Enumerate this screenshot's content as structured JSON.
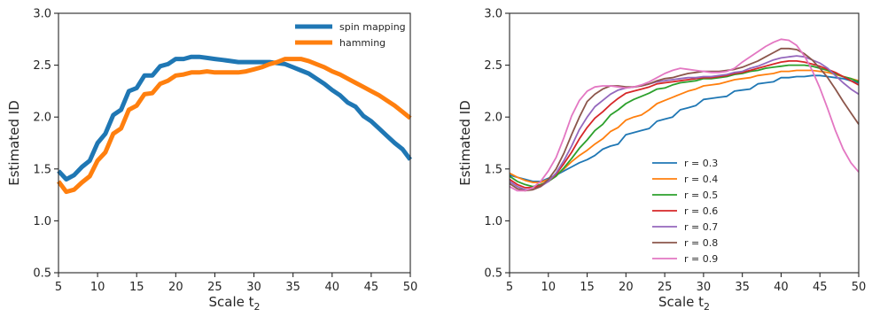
{
  "chart_data": [
    {
      "type": "line",
      "xlabel": "Scale t",
      "xlabel_sub": "2",
      "ylabel": "Estimated ID",
      "xlim": [
        5,
        50
      ],
      "ylim": [
        0.5,
        3.0
      ],
      "xticks": [
        5,
        10,
        15,
        20,
        25,
        30,
        35,
        40,
        45,
        50
      ],
      "yticks": [
        "0.5",
        "1.0",
        "1.5",
        "2.0",
        "2.5",
        "3.0"
      ],
      "legend_position": "top-right",
      "grid": false,
      "series": [
        {
          "name": "spin mapping",
          "color": "#1f77b4",
          "x": [
            5,
            6,
            7,
            8,
            9,
            10,
            11,
            12,
            13,
            14,
            15,
            16,
            17,
            18,
            19,
            20,
            21,
            22,
            23,
            24,
            25,
            26,
            27,
            28,
            29,
            30,
            31,
            32,
            33,
            34,
            35,
            36,
            37,
            38,
            39,
            40,
            41,
            42,
            43,
            44,
            45,
            46,
            47,
            48,
            49,
            50
          ],
          "y": [
            1.48,
            1.4,
            1.44,
            1.52,
            1.58,
            1.75,
            1.84,
            2.02,
            2.07,
            2.25,
            2.28,
            2.4,
            2.4,
            2.49,
            2.51,
            2.56,
            2.56,
            2.58,
            2.58,
            2.57,
            2.56,
            2.55,
            2.54,
            2.53,
            2.53,
            2.53,
            2.53,
            2.53,
            2.52,
            2.51,
            2.48,
            2.45,
            2.42,
            2.37,
            2.32,
            2.26,
            2.21,
            2.14,
            2.1,
            2.01,
            1.96,
            1.89,
            1.82,
            1.75,
            1.69,
            1.59
          ]
        },
        {
          "name": "hamming",
          "color": "#ff7f0e",
          "x": [
            5,
            6,
            7,
            8,
            9,
            10,
            11,
            12,
            13,
            14,
            15,
            16,
            17,
            18,
            19,
            20,
            21,
            22,
            23,
            24,
            25,
            26,
            27,
            28,
            29,
            30,
            31,
            32,
            33,
            34,
            35,
            36,
            37,
            38,
            39,
            40,
            41,
            42,
            43,
            44,
            45,
            46,
            47,
            48,
            49,
            50
          ],
          "y": [
            1.38,
            1.28,
            1.3,
            1.37,
            1.43,
            1.58,
            1.66,
            1.84,
            1.89,
            2.07,
            2.11,
            2.22,
            2.23,
            2.32,
            2.35,
            2.4,
            2.41,
            2.43,
            2.43,
            2.44,
            2.43,
            2.43,
            2.43,
            2.43,
            2.44,
            2.46,
            2.48,
            2.51,
            2.53,
            2.56,
            2.56,
            2.56,
            2.54,
            2.51,
            2.48,
            2.44,
            2.41,
            2.37,
            2.33,
            2.29,
            2.25,
            2.21,
            2.16,
            2.11,
            2.05,
            1.99
          ]
        }
      ]
    },
    {
      "type": "line",
      "xlabel": "Scale t",
      "xlabel_sub": "2",
      "ylabel": "Estimated ID",
      "xlim": [
        5,
        50
      ],
      "ylim": [
        0.5,
        3.0
      ],
      "xticks": [
        5,
        10,
        15,
        20,
        25,
        30,
        35,
        40,
        45,
        50
      ],
      "yticks": [
        "0.5",
        "1.0",
        "1.5",
        "2.0",
        "2.5",
        "3.0"
      ],
      "legend_position": "lower-center",
      "grid": false,
      "series": [
        {
          "name": "r = 0.3",
          "color": "#1f77b4",
          "x": [
            5,
            6,
            7,
            8,
            9,
            10,
            11,
            12,
            13,
            14,
            15,
            16,
            17,
            18,
            19,
            20,
            21,
            22,
            23,
            24,
            25,
            26,
            27,
            28,
            29,
            30,
            31,
            32,
            33,
            34,
            35,
            36,
            37,
            38,
            39,
            40,
            41,
            42,
            43,
            44,
            45,
            46,
            47,
            48,
            49,
            50
          ],
          "y": [
            1.44,
            1.42,
            1.4,
            1.38,
            1.38,
            1.41,
            1.44,
            1.48,
            1.52,
            1.56,
            1.59,
            1.63,
            1.69,
            1.72,
            1.74,
            1.83,
            1.85,
            1.87,
            1.89,
            1.96,
            1.98,
            2.0,
            2.07,
            2.09,
            2.11,
            2.17,
            2.18,
            2.19,
            2.2,
            2.25,
            2.26,
            2.27,
            2.32,
            2.33,
            2.34,
            2.38,
            2.38,
            2.39,
            2.39,
            2.4,
            2.4,
            2.39,
            2.38,
            2.37,
            2.35,
            2.33
          ]
        },
        {
          "name": "r = 0.4",
          "color": "#ff7f0e",
          "x": [
            5,
            6,
            7,
            8,
            9,
            10,
            11,
            12,
            13,
            14,
            15,
            16,
            17,
            18,
            19,
            20,
            21,
            22,
            23,
            24,
            25,
            26,
            27,
            28,
            29,
            30,
            31,
            32,
            33,
            34,
            35,
            36,
            37,
            38,
            39,
            40,
            41,
            42,
            43,
            44,
            45,
            46,
            47,
            48,
            49,
            50
          ],
          "y": [
            1.46,
            1.42,
            1.39,
            1.37,
            1.37,
            1.4,
            1.44,
            1.5,
            1.57,
            1.63,
            1.68,
            1.74,
            1.79,
            1.86,
            1.9,
            1.97,
            2.0,
            2.02,
            2.07,
            2.13,
            2.16,
            2.19,
            2.22,
            2.25,
            2.27,
            2.3,
            2.31,
            2.32,
            2.34,
            2.36,
            2.37,
            2.38,
            2.4,
            2.41,
            2.42,
            2.44,
            2.44,
            2.45,
            2.45,
            2.45,
            2.44,
            2.43,
            2.41,
            2.39,
            2.37,
            2.35
          ]
        },
        {
          "name": "r = 0.5",
          "color": "#2ca02c",
          "x": [
            5,
            6,
            7,
            8,
            9,
            10,
            11,
            12,
            13,
            14,
            15,
            16,
            17,
            18,
            19,
            20,
            21,
            22,
            23,
            24,
            25,
            26,
            27,
            28,
            29,
            30,
            31,
            32,
            33,
            34,
            35,
            36,
            37,
            38,
            39,
            40,
            41,
            42,
            43,
            44,
            45,
            46,
            47,
            48,
            49,
            50
          ],
          "y": [
            1.43,
            1.38,
            1.35,
            1.33,
            1.35,
            1.38,
            1.43,
            1.51,
            1.6,
            1.7,
            1.78,
            1.87,
            1.93,
            2.02,
            2.07,
            2.13,
            2.17,
            2.2,
            2.23,
            2.27,
            2.28,
            2.31,
            2.33,
            2.34,
            2.35,
            2.37,
            2.37,
            2.38,
            2.39,
            2.41,
            2.42,
            2.44,
            2.45,
            2.47,
            2.48,
            2.49,
            2.5,
            2.5,
            2.5,
            2.49,
            2.47,
            2.45,
            2.42,
            2.39,
            2.37,
            2.34
          ]
        },
        {
          "name": "r = 0.6",
          "color": "#d62728",
          "x": [
            5,
            6,
            7,
            8,
            9,
            10,
            11,
            12,
            13,
            14,
            15,
            16,
            17,
            18,
            19,
            20,
            21,
            22,
            23,
            24,
            25,
            26,
            27,
            28,
            29,
            30,
            31,
            32,
            33,
            34,
            35,
            36,
            37,
            38,
            39,
            40,
            41,
            42,
            43,
            44,
            45,
            46,
            47,
            48,
            49,
            50
          ],
          "y": [
            1.4,
            1.35,
            1.32,
            1.32,
            1.34,
            1.38,
            1.45,
            1.55,
            1.66,
            1.79,
            1.9,
            1.99,
            2.05,
            2.12,
            2.18,
            2.23,
            2.25,
            2.27,
            2.29,
            2.32,
            2.33,
            2.34,
            2.35,
            2.36,
            2.37,
            2.38,
            2.38,
            2.39,
            2.4,
            2.42,
            2.43,
            2.45,
            2.47,
            2.49,
            2.51,
            2.53,
            2.54,
            2.54,
            2.53,
            2.51,
            2.49,
            2.46,
            2.43,
            2.39,
            2.35,
            2.31
          ]
        },
        {
          "name": "r = 0.7",
          "color": "#9467bd",
          "x": [
            5,
            6,
            7,
            8,
            9,
            10,
            11,
            12,
            13,
            14,
            15,
            16,
            17,
            18,
            19,
            20,
            21,
            22,
            23,
            24,
            25,
            26,
            27,
            28,
            29,
            30,
            31,
            32,
            33,
            34,
            35,
            36,
            37,
            38,
            39,
            40,
            41,
            42,
            43,
            44,
            45,
            46,
            47,
            48,
            49,
            50
          ],
          "y": [
            1.38,
            1.33,
            1.3,
            1.3,
            1.33,
            1.38,
            1.46,
            1.58,
            1.72,
            1.88,
            2.0,
            2.1,
            2.16,
            2.22,
            2.26,
            2.28,
            2.29,
            2.3,
            2.32,
            2.34,
            2.35,
            2.36,
            2.37,
            2.38,
            2.38,
            2.39,
            2.39,
            2.4,
            2.41,
            2.43,
            2.44,
            2.47,
            2.49,
            2.52,
            2.55,
            2.57,
            2.58,
            2.59,
            2.58,
            2.55,
            2.52,
            2.47,
            2.4,
            2.33,
            2.27,
            2.22
          ]
        },
        {
          "name": "r = 0.8",
          "color": "#8c564b",
          "x": [
            5,
            6,
            7,
            8,
            9,
            10,
            11,
            12,
            13,
            14,
            15,
            16,
            17,
            18,
            19,
            20,
            21,
            22,
            23,
            24,
            25,
            26,
            27,
            28,
            29,
            30,
            31,
            32,
            33,
            34,
            35,
            36,
            37,
            38,
            39,
            40,
            41,
            42,
            43,
            44,
            45,
            46,
            47,
            48,
            49,
            50
          ],
          "y": [
            1.36,
            1.31,
            1.29,
            1.3,
            1.33,
            1.4,
            1.5,
            1.65,
            1.83,
            2.0,
            2.15,
            2.22,
            2.27,
            2.3,
            2.3,
            2.29,
            2.29,
            2.3,
            2.32,
            2.35,
            2.37,
            2.38,
            2.4,
            2.42,
            2.43,
            2.44,
            2.44,
            2.44,
            2.45,
            2.46,
            2.48,
            2.51,
            2.54,
            2.58,
            2.62,
            2.66,
            2.66,
            2.65,
            2.61,
            2.55,
            2.47,
            2.38,
            2.27,
            2.15,
            2.04,
            1.93
          ]
        },
        {
          "name": "r = 0.9",
          "color": "#e377c2",
          "x": [
            5,
            6,
            7,
            8,
            9,
            10,
            11,
            12,
            13,
            14,
            15,
            16,
            17,
            18,
            19,
            20,
            21,
            22,
            23,
            24,
            25,
            26,
            27,
            28,
            29,
            30,
            31,
            32,
            33,
            34,
            35,
            36,
            37,
            38,
            39,
            40,
            41,
            42,
            43,
            44,
            45,
            46,
            47,
            48,
            49,
            50
          ],
          "y": [
            1.33,
            1.29,
            1.29,
            1.32,
            1.38,
            1.48,
            1.61,
            1.8,
            2.01,
            2.16,
            2.25,
            2.29,
            2.3,
            2.3,
            2.29,
            2.28,
            2.29,
            2.31,
            2.34,
            2.38,
            2.42,
            2.45,
            2.47,
            2.46,
            2.45,
            2.44,
            2.43,
            2.43,
            2.44,
            2.47,
            2.53,
            2.58,
            2.63,
            2.68,
            2.72,
            2.75,
            2.74,
            2.69,
            2.59,
            2.45,
            2.28,
            2.08,
            1.87,
            1.69,
            1.56,
            1.47
          ]
        }
      ]
    }
  ]
}
